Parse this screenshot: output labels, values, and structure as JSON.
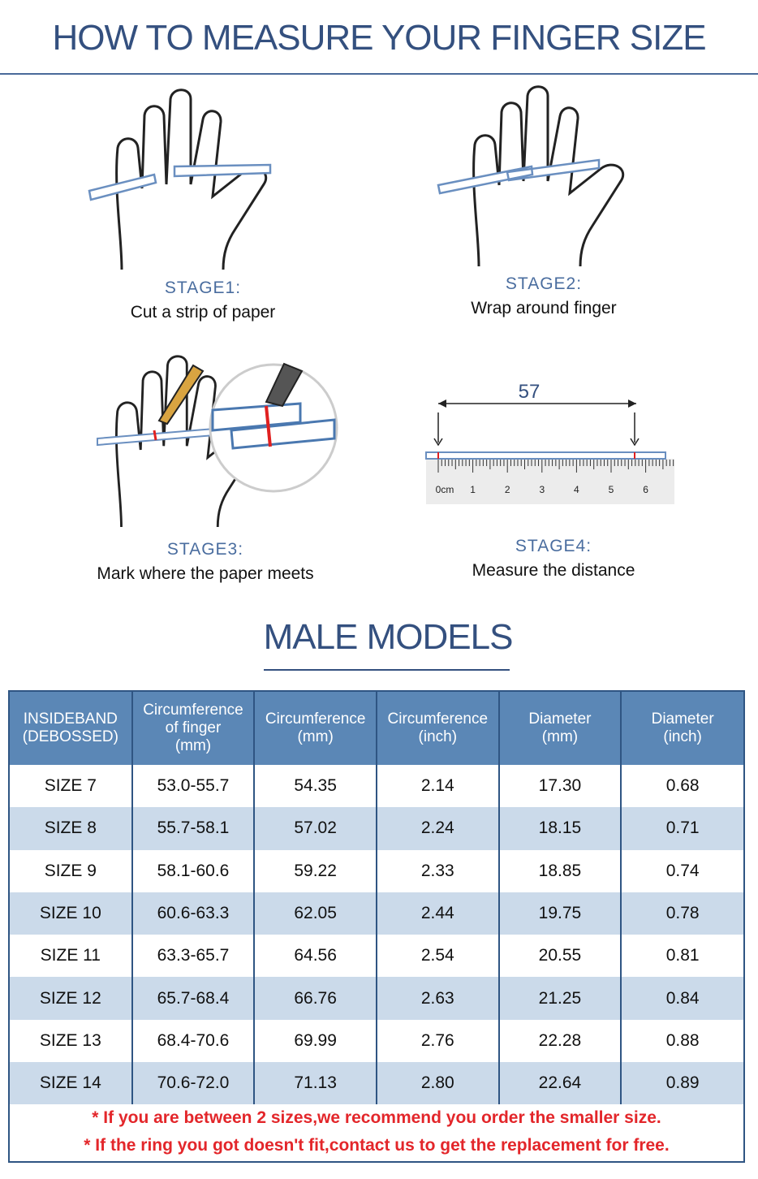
{
  "header": {
    "title": "HOW TO MEASURE YOUR FINGER SIZE"
  },
  "stages": [
    {
      "label": "STAGE1:",
      "text": "Cut a strip of paper"
    },
    {
      "label": "STAGE2:",
      "text": "Wrap around finger"
    },
    {
      "label": "STAGE3:",
      "text": "Mark where the paper meets"
    },
    {
      "label": "STAGE4:",
      "text": "Measure the distance"
    }
  ],
  "ruler": {
    "length": "57",
    "labels": [
      "0cm",
      "1",
      "2",
      "3",
      "4",
      "5",
      "6"
    ]
  },
  "section": {
    "title": "MALE MODELS"
  },
  "table": {
    "header": [
      "INSIDEBAND\n(DEBOSSED)",
      "Circumference\nof finger\n(mm)",
      "Circumference\n(mm)",
      "Circumference\n(inch)",
      "Diameter\n(mm)",
      "Diameter\n(inch)"
    ],
    "rows": [
      [
        "SIZE 7",
        "53.0-55.7",
        "54.35",
        "2.14",
        "17.30",
        "0.68"
      ],
      [
        "SIZE 8",
        "55.7-58.1",
        "57.02",
        "2.24",
        "18.15",
        "0.71"
      ],
      [
        "SIZE 9",
        "58.1-60.6",
        "59.22",
        "2.33",
        "18.85",
        "0.74"
      ],
      [
        "SIZE 10",
        "60.6-63.3",
        "62.05",
        "2.44",
        "19.75",
        "0.78"
      ],
      [
        "SIZE 11",
        "63.3-65.7",
        "64.56",
        "2.54",
        "20.55",
        "0.81"
      ],
      [
        "SIZE 12",
        "65.7-68.4",
        "66.76",
        "2.63",
        "21.25",
        "0.84"
      ],
      [
        "SIZE 13",
        "68.4-70.6",
        "69.99",
        "2.76",
        "22.28",
        "0.88"
      ],
      [
        "SIZE 14",
        "70.6-72.0",
        "71.13",
        "2.80",
        "22.64",
        "0.89"
      ]
    ]
  },
  "notes": [
    "* If you are between 2 sizes,we recommend you order the smaller size.",
    "* If the ring you got doesn't fit,contact us to get the replacement for free."
  ]
}
